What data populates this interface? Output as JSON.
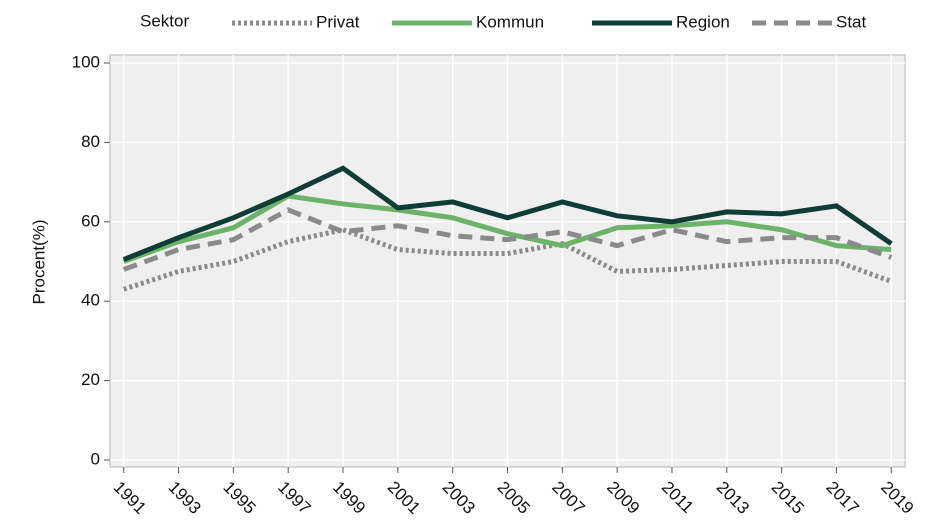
{
  "chart_data": {
    "type": "line",
    "legend_title": "Sektor",
    "y_label": "Procent(%)",
    "x": [
      1991,
      1993,
      1995,
      1997,
      1999,
      2001,
      2003,
      2005,
      2007,
      2009,
      2011,
      2013,
      2015,
      2017,
      2019
    ],
    "series": [
      {
        "name": "Privat",
        "color": "#8a8a8a",
        "style": "dotted",
        "values": [
          43,
          47.5,
          50,
          55,
          58,
          53,
          52,
          52,
          54.5,
          47.5,
          48,
          49,
          50,
          50,
          45
        ]
      },
      {
        "name": "Kommun",
        "color": "#6cb36a",
        "style": "solid",
        "values": [
          50,
          55,
          58.5,
          66.5,
          64.5,
          63,
          61,
          57,
          54,
          58.5,
          59,
          60,
          58,
          54,
          53
        ]
      },
      {
        "name": "Region",
        "color": "#0d3d35",
        "style": "solid",
        "values": [
          50.5,
          56,
          61,
          67,
          73.5,
          63.5,
          65,
          61,
          65,
          61.5,
          60,
          62.5,
          62,
          64,
          54.5
        ]
      },
      {
        "name": "Stat",
        "color": "#8a8a8a",
        "style": "dashed",
        "values": [
          48,
          53,
          55.5,
          63,
          57.5,
          59,
          56.5,
          55.5,
          57.5,
          54,
          58,
          55,
          56,
          56,
          51
        ]
      }
    ],
    "xlim": [
      1990.5,
      2019.5
    ],
    "xticks": [
      1991,
      1993,
      1995,
      1997,
      1999,
      2001,
      2003,
      2005,
      2007,
      2009,
      2011,
      2013,
      2015,
      2017,
      2019
    ],
    "ylim": [
      0,
      100
    ],
    "yticks": [
      0,
      20,
      40,
      60,
      80,
      100
    ],
    "grid": true,
    "legend_position": "top"
  }
}
